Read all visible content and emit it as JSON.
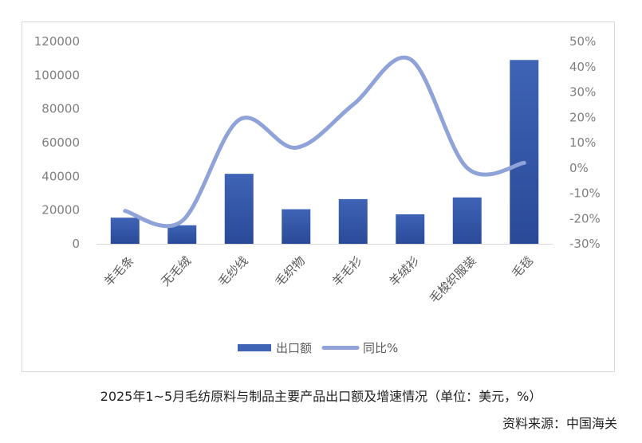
{
  "caption": "2025年1~5月毛纺原料与制品主要产品出口额及增速情况（单位：美元，%）",
  "source": "资料来源：中国海关",
  "colors": {
    "bar": "#3f63b5",
    "bar_dark": "#2a4a98",
    "line": "#8fa3d9"
  },
  "chart_data": {
    "type": "bar",
    "categories": [
      "羊毛条",
      "无毛绒",
      "毛纱线",
      "毛织物",
      "羊毛衫",
      "羊绒衫",
      "毛梭织服装",
      "毛毯"
    ],
    "series": [
      {
        "name": "出口额",
        "type": "bar",
        "axis": "left",
        "values": [
          15500,
          11000,
          41500,
          20500,
          26500,
          17500,
          27500,
          109000
        ]
      },
      {
        "name": "同比%",
        "type": "line",
        "axis": "right",
        "smooth": true,
        "values": [
          -17,
          -21,
          19,
          8,
          25,
          43,
          0,
          2
        ]
      }
    ],
    "y_left": {
      "min": 0,
      "max": 120000,
      "step": 20000
    },
    "y_right": {
      "min": -30,
      "max": 50,
      "step": 10,
      "suffix": "%"
    },
    "legend": "bottom",
    "grid": false
  }
}
